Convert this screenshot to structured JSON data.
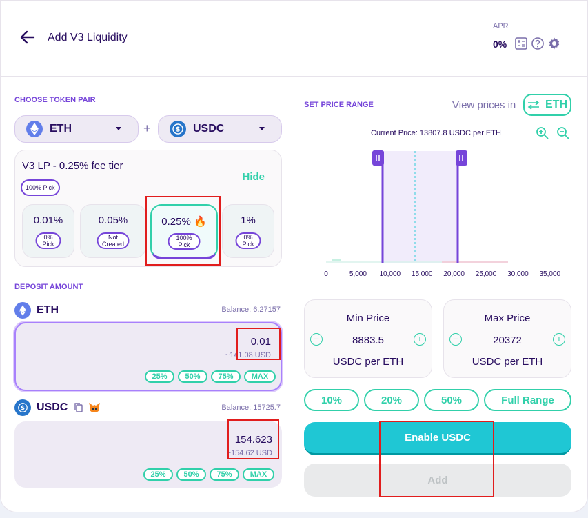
{
  "header": {
    "title": "Add V3 Liquidity",
    "apr_label": "APR",
    "apr_value": "0%"
  },
  "left": {
    "choose_label": "CHOOSE TOKEN PAIR",
    "token_a": "ETH",
    "token_b": "USDC",
    "plus": "+",
    "fee_title": "V3 LP - 0.25% fee tier",
    "fee_pick": "100% Pick",
    "hide_label": "Hide",
    "fee_options": [
      {
        "value": "0.01%",
        "pick": "0% Pick"
      },
      {
        "value": "0.05%",
        "pick": "Not Created"
      },
      {
        "value": "0.25% 🔥",
        "pick": "100% Pick"
      },
      {
        "value": "1%",
        "pick": "0% Pick"
      }
    ],
    "deposit_label": "DEPOSIT AMOUNT",
    "eth": {
      "symbol": "ETH",
      "balance": "Balance: 6.27157",
      "value": "0.01",
      "usd": "~141.08 USD"
    },
    "usdc": {
      "symbol": "USDC",
      "balance": "Balance: 15725.7",
      "value": "154.623",
      "usd": "~154.62 USD"
    },
    "percent_buttons": [
      "25%",
      "50%",
      "75%",
      "MAX"
    ]
  },
  "right": {
    "range_label": "SET PRICE RANGE",
    "view_prices": "View prices in",
    "view_token": "ETH",
    "current_price": "Current Price: 13807.8  USDC per ETH",
    "x_ticks": [
      "0",
      "5,000",
      "10,000",
      "15,000",
      "20,000",
      "25,000",
      "30,000",
      "35,000"
    ],
    "min": {
      "label": "Min Price",
      "value": "8883.5",
      "unit": "USDC per ETH"
    },
    "max": {
      "label": "Max Price",
      "value": "20372",
      "unit": "USDC per ETH"
    },
    "range_buttons": [
      "10%",
      "20%",
      "50%",
      "Full Range"
    ],
    "enable_label": "Enable USDC",
    "add_label": "Add"
  },
  "colors": {
    "primary": "#1fc7d4",
    "secondary": "#7645d9",
    "success": "#31d0aa",
    "text": "#280d5f",
    "subtle": "#7a6eaa",
    "annotation": "#e11d1d"
  }
}
